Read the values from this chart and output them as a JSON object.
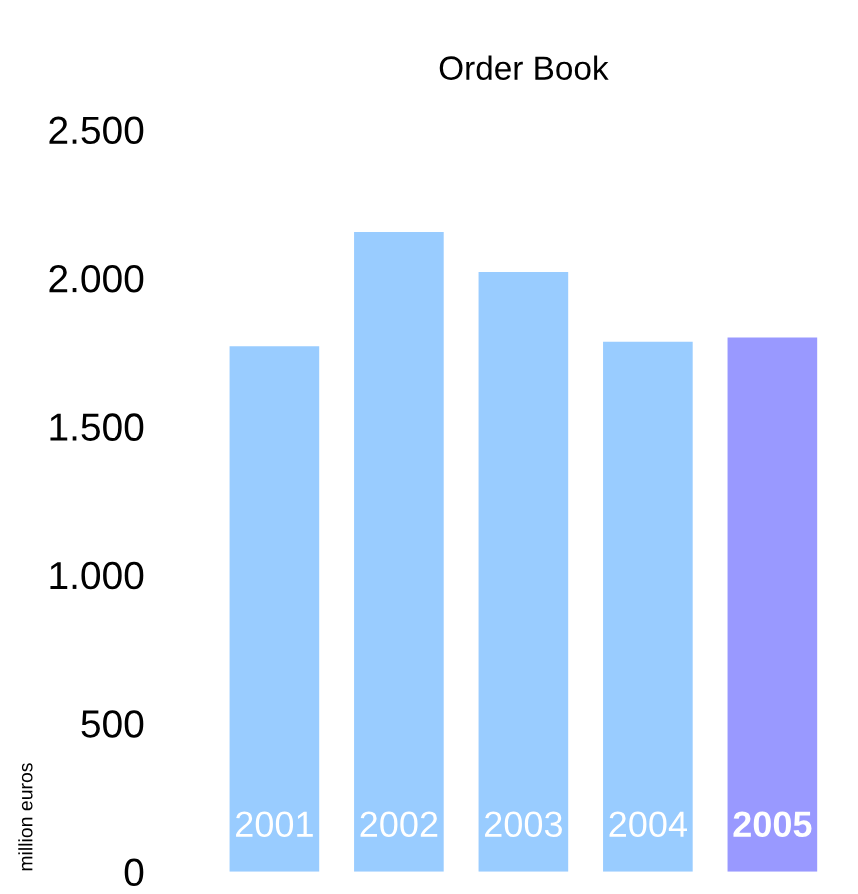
{
  "chart_data": {
    "type": "bar",
    "title": "Order Book",
    "ylabel": "million euros",
    "categories": [
      "2001",
      "2002",
      "2003",
      "2004",
      "2005"
    ],
    "values": [
      1770,
      2155,
      2020,
      1785,
      1800
    ],
    "colors": [
      "#99ccff",
      "#99ccff",
      "#99ccff",
      "#99ccff",
      "#9999ff"
    ],
    "ylim": [
      0,
      2500
    ],
    "yticks": [
      {
        "value": 0,
        "label": "0"
      },
      {
        "value": 500,
        "label": "500"
      },
      {
        "value": 1000,
        "label": "1.000"
      },
      {
        "value": 1500,
        "label": "1.500"
      },
      {
        "value": 2000,
        "label": "2.000"
      },
      {
        "value": 2500,
        "label": "2.500"
      }
    ],
    "grid": false,
    "legend": false
  }
}
